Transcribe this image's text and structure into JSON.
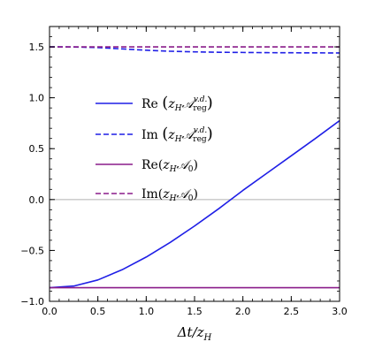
{
  "chart_data": {
    "type": "line",
    "xlabel": "Δt/z_H",
    "xlim": [
      0.0,
      3.0
    ],
    "ylim": [
      -1.0,
      1.7
    ],
    "x_ticks": [
      "0.0",
      "0.5",
      "1.0",
      "1.5",
      "2.0",
      "2.5",
      "3.0"
    ],
    "y_ticks": [
      "-1.0",
      "-0.5",
      "0.0",
      "0.5",
      "1.0",
      "1.5"
    ],
    "zero_line": true,
    "legend_position": "center-left",
    "series": [
      {
        "name": "Re(z_H A_reg^{v.d.})",
        "color": "#1f1fe6",
        "dash": "solid",
        "x": [
          0.0,
          0.25,
          0.5,
          0.75,
          1.0,
          1.25,
          1.5,
          1.75,
          2.0,
          2.25,
          2.5,
          2.75,
          3.0
        ],
        "y": [
          -0.866,
          -0.85,
          -0.79,
          -0.69,
          -0.565,
          -0.42,
          -0.26,
          -0.09,
          0.09,
          0.26,
          0.43,
          0.6,
          0.775
        ]
      },
      {
        "name": "Im(z_H A_reg^{v.d.})",
        "color": "#1f1fe6",
        "dash": "dashed",
        "x": [
          0.0,
          0.25,
          0.5,
          0.75,
          1.0,
          1.25,
          1.5,
          1.75,
          2.0,
          2.25,
          2.5,
          2.75,
          3.0
        ],
        "y": [
          1.5,
          1.499,
          1.493,
          1.48,
          1.467,
          1.457,
          1.451,
          1.447,
          1.445,
          1.443,
          1.442,
          1.441,
          1.44
        ]
      },
      {
        "name": "Re(z_H A_0)",
        "color": "#8a1c8a",
        "dash": "solid",
        "x": [
          0.0,
          3.0
        ],
        "y": [
          -0.866,
          -0.866
        ]
      },
      {
        "name": "Im(z_H A_0)",
        "color": "#8a1c8a",
        "dash": "dashed",
        "x": [
          0.0,
          3.0
        ],
        "y": [
          1.5,
          1.5
        ]
      }
    ]
  }
}
